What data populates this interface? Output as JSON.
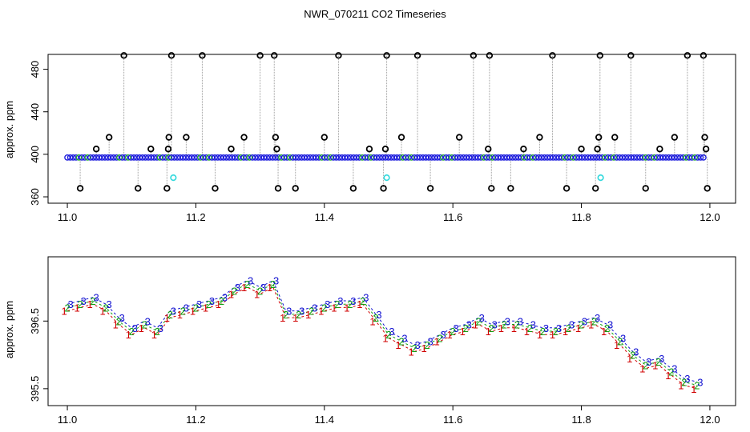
{
  "title": "NWR_070211  CO2 Timeseries",
  "chart_data": [
    {
      "type": "scatter",
      "ylabel": "approx. ppm",
      "xlim": [
        10.97,
        12.04
      ],
      "ylim": [
        354,
        494
      ],
      "xticks": [
        "11.0",
        "11.2",
        "11.4",
        "11.6",
        "11.8",
        "12.0"
      ],
      "xtick_values": [
        11.0,
        11.2,
        11.4,
        11.6,
        11.8,
        12.0
      ],
      "yticks": [
        "360",
        "400",
        "440",
        "480"
      ],
      "ytick_values": [
        360,
        400,
        440,
        480
      ],
      "baseline": 397,
      "baseline_range": [
        11.0,
        11.99
      ],
      "colors": {
        "baseline_points": "#1a1adc",
        "baseline_alt": "#1fa82a",
        "outlier_points": "#000000",
        "flag_points": "#2ed8dc",
        "drop_lines": "#9a9a9a"
      },
      "outliers": [
        {
          "x": 11.02,
          "y": 368
        },
        {
          "x": 11.045,
          "y": 405
        },
        {
          "x": 11.065,
          "y": 416
        },
        {
          "x": 11.088,
          "y": 493
        },
        {
          "x": 11.11,
          "y": 368
        },
        {
          "x": 11.13,
          "y": 405
        },
        {
          "x": 11.155,
          "y": 368
        },
        {
          "x": 11.157,
          "y": 405
        },
        {
          "x": 11.158,
          "y": 416
        },
        {
          "x": 11.162,
          "y": 493
        },
        {
          "x": 11.185,
          "y": 416
        },
        {
          "x": 11.21,
          "y": 493
        },
        {
          "x": 11.23,
          "y": 368
        },
        {
          "x": 11.255,
          "y": 405
        },
        {
          "x": 11.275,
          "y": 416
        },
        {
          "x": 11.3,
          "y": 493
        },
        {
          "x": 11.322,
          "y": 493
        },
        {
          "x": 11.324,
          "y": 416
        },
        {
          "x": 11.326,
          "y": 405
        },
        {
          "x": 11.328,
          "y": 368
        },
        {
          "x": 11.355,
          "y": 368
        },
        {
          "x": 11.4,
          "y": 416
        },
        {
          "x": 11.422,
          "y": 493
        },
        {
          "x": 11.445,
          "y": 368
        },
        {
          "x": 11.47,
          "y": 405
        },
        {
          "x": 11.492,
          "y": 368
        },
        {
          "x": 11.495,
          "y": 405
        },
        {
          "x": 11.497,
          "y": 493
        },
        {
          "x": 11.52,
          "y": 416
        },
        {
          "x": 11.545,
          "y": 493
        },
        {
          "x": 11.565,
          "y": 368
        },
        {
          "x": 11.61,
          "y": 416
        },
        {
          "x": 11.632,
          "y": 493
        },
        {
          "x": 11.655,
          "y": 405
        },
        {
          "x": 11.657,
          "y": 493
        },
        {
          "x": 11.66,
          "y": 368
        },
        {
          "x": 11.69,
          "y": 368
        },
        {
          "x": 11.71,
          "y": 405
        },
        {
          "x": 11.735,
          "y": 416
        },
        {
          "x": 11.755,
          "y": 493
        },
        {
          "x": 11.777,
          "y": 368
        },
        {
          "x": 11.8,
          "y": 405
        },
        {
          "x": 11.822,
          "y": 368
        },
        {
          "x": 11.825,
          "y": 405
        },
        {
          "x": 11.827,
          "y": 416
        },
        {
          "x": 11.829,
          "y": 493
        },
        {
          "x": 11.852,
          "y": 416
        },
        {
          "x": 11.877,
          "y": 493
        },
        {
          "x": 11.9,
          "y": 368
        },
        {
          "x": 11.922,
          "y": 405
        },
        {
          "x": 11.945,
          "y": 416
        },
        {
          "x": 11.965,
          "y": 493
        },
        {
          "x": 11.99,
          "y": 493
        },
        {
          "x": 11.992,
          "y": 416
        },
        {
          "x": 11.994,
          "y": 405
        },
        {
          "x": 11.996,
          "y": 368
        }
      ],
      "flags": [
        {
          "x": 11.165,
          "y": 378
        },
        {
          "x": 11.497,
          "y": 378
        },
        {
          "x": 11.83,
          "y": 378
        }
      ]
    },
    {
      "type": "line",
      "ylabel": "approx. ppm",
      "xlim": [
        10.97,
        12.04
      ],
      "ylim": [
        395.25,
        397.45
      ],
      "xticks": [
        "11.0",
        "11.2",
        "11.4",
        "11.6",
        "11.8",
        "12.0"
      ],
      "xtick_values": [
        11.0,
        11.2,
        11.4,
        11.6,
        11.8,
        12.0
      ],
      "yticks": [
        "395.5",
        "396.5"
      ],
      "ytick_values": [
        395.5,
        396.5
      ],
      "series_markers": [
        "1",
        "2",
        "3"
      ],
      "series_colors": [
        "#d00000",
        "#10a010",
        "#1010d0"
      ],
      "x": [
        11.0,
        11.02,
        11.04,
        11.06,
        11.08,
        11.1,
        11.12,
        11.14,
        11.16,
        11.18,
        11.2,
        11.22,
        11.24,
        11.26,
        11.28,
        11.3,
        11.32,
        11.34,
        11.36,
        11.38,
        11.4,
        11.42,
        11.44,
        11.46,
        11.48,
        11.5,
        11.52,
        11.54,
        11.56,
        11.58,
        11.6,
        11.62,
        11.64,
        11.66,
        11.68,
        11.7,
        11.72,
        11.74,
        11.76,
        11.78,
        11.8,
        11.82,
        11.84,
        11.86,
        11.88,
        11.9,
        11.92,
        11.94,
        11.96,
        11.98
      ],
      "y": [
        396.7,
        396.75,
        396.8,
        396.7,
        396.5,
        396.35,
        396.45,
        396.35,
        396.6,
        396.65,
        396.7,
        396.75,
        396.8,
        396.95,
        397.05,
        396.95,
        397.05,
        396.6,
        396.6,
        396.65,
        396.7,
        396.75,
        396.75,
        396.8,
        396.55,
        396.3,
        396.2,
        396.1,
        396.15,
        396.25,
        396.35,
        396.4,
        396.5,
        396.4,
        396.45,
        396.45,
        396.4,
        396.35,
        396.35,
        396.4,
        396.45,
        396.5,
        396.4,
        396.2,
        396.0,
        395.85,
        395.9,
        395.75,
        395.6,
        395.55
      ]
    }
  ]
}
